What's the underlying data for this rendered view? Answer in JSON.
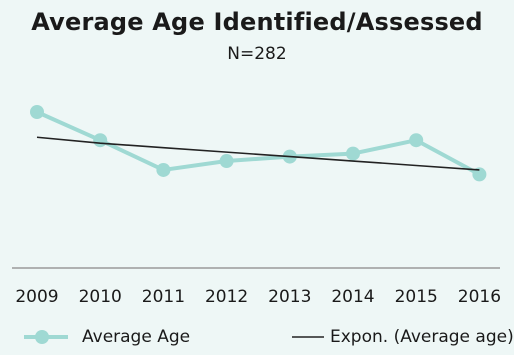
{
  "chart_data": {
    "type": "line",
    "title": "Average Age Identified/Assessed",
    "subtitle": "N=282",
    "categories": [
      "2009",
      "2010",
      "2011",
      "2012",
      "2013",
      "2014",
      "2015",
      "2016"
    ],
    "series": [
      {
        "name": "Average Age",
        "values": [
          10.5,
          8.6,
          6.6,
          7.2,
          7.5,
          7.7,
          8.6,
          6.3
        ],
        "color": "#9fd9d3"
      },
      {
        "name": "Expon. (Average age)",
        "values": [
          8.8,
          8.4,
          8.1,
          7.8,
          7.5,
          7.2,
          6.9,
          6.6
        ],
        "color": "#222222",
        "trendline": true
      }
    ],
    "xlabel": "",
    "ylabel": "",
    "ylim": [
      0,
      14
    ],
    "grid": false,
    "legend": "bottom"
  }
}
